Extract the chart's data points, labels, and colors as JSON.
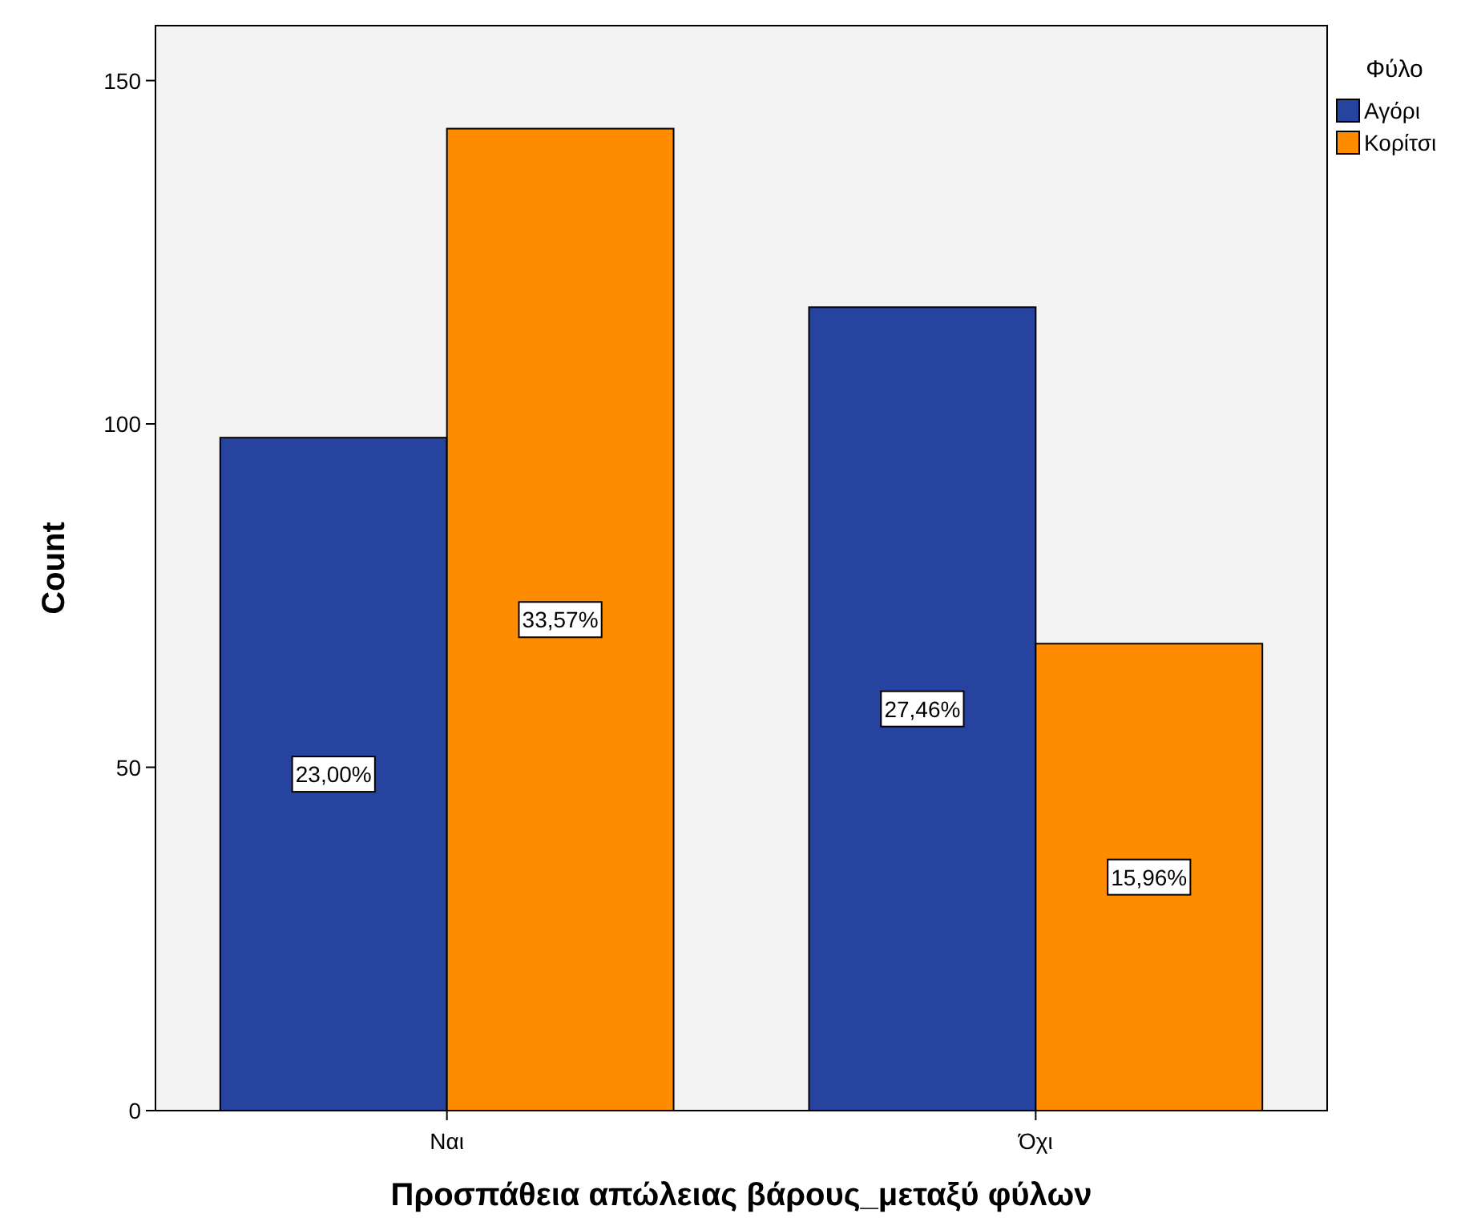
{
  "chart_data": {
    "type": "bar",
    "xlabel": "Προσπάθεια απώλειας βάρους_μεταξύ φύλων",
    "ylabel": "Count",
    "legend_title": "Φύλο",
    "legend": "top right",
    "categories": [
      "Ναι",
      "Όχι"
    ],
    "ylim": [
      0,
      158
    ],
    "yticks": [
      0,
      50,
      100,
      150
    ],
    "grid": false,
    "series": [
      {
        "name": "Αγόρι",
        "color": "#2743a0",
        "values": [
          98,
          117
        ]
      },
      {
        "name": "Κορίτσι",
        "color": "#ff8c00",
        "values": [
          143,
          68
        ]
      }
    ],
    "annotations": [
      "23,00%",
      "33,57%",
      "27,46%",
      "15,96%"
    ]
  }
}
